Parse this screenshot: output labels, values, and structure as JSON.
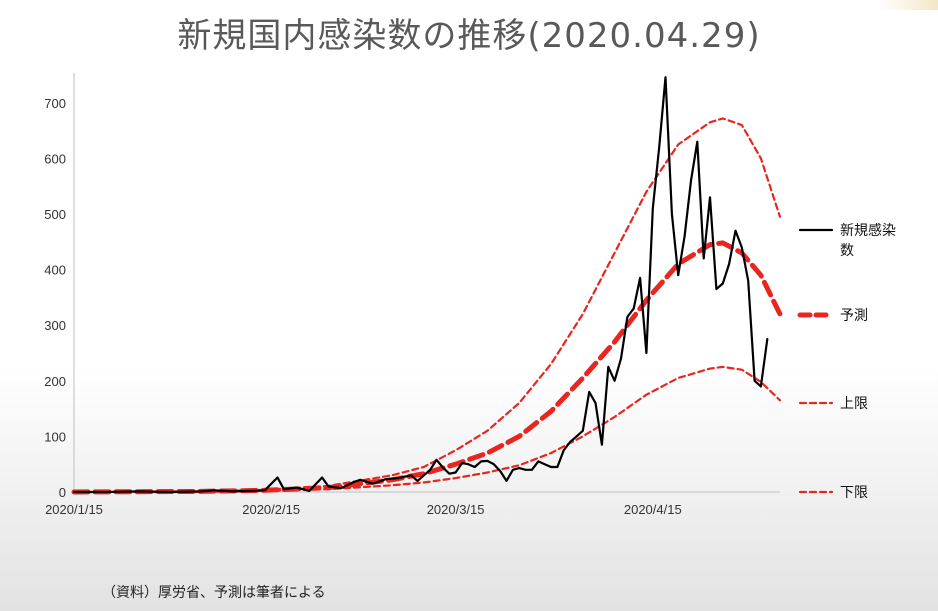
{
  "title": "新規国内感染数の推移(2020.04.29)",
  "source_note": "（資料）厚労省、予測は筆者による",
  "colors": {
    "actual": "#000000",
    "forecast": "#e8261f",
    "bounds": "#e8261f",
    "title": "#595959"
  },
  "chart_data": {
    "type": "line",
    "title": "新規国内感染数の推移(2020.04.29)",
    "x_start": "2020-01-15",
    "x_end": "2020-04-29",
    "xticks": [
      {
        "day": 0,
        "label": "2020/1/15"
      },
      {
        "day": 31,
        "label": "2020/2/15"
      },
      {
        "day": 60,
        "label": "2020/3/15"
      },
      {
        "day": 91,
        "label": "2020/4/15"
      }
    ],
    "ylim": [
      0,
      750
    ],
    "yticks": [
      0,
      100,
      200,
      300,
      400,
      500,
      600,
      700
    ],
    "series": [
      {
        "name": "新規感染数",
        "style": "solid",
        "values": [
          [
            0,
            0
          ],
          [
            5,
            0
          ],
          [
            10,
            1
          ],
          [
            15,
            0
          ],
          [
            20,
            1
          ],
          [
            22,
            3
          ],
          [
            25,
            1
          ],
          [
            28,
            2
          ],
          [
            30,
            3
          ],
          [
            32,
            26
          ],
          [
            33,
            5
          ],
          [
            35,
            8
          ],
          [
            37,
            2
          ],
          [
            39,
            26
          ],
          [
            40,
            10
          ],
          [
            42,
            7
          ],
          [
            44,
            18
          ],
          [
            45,
            22
          ],
          [
            47,
            15
          ],
          [
            49,
            23
          ],
          [
            51,
            25
          ],
          [
            53,
            30
          ],
          [
            54,
            20
          ],
          [
            56,
            40
          ],
          [
            57,
            58
          ],
          [
            58,
            44
          ],
          [
            59,
            33
          ],
          [
            60,
            35
          ],
          [
            61,
            52
          ],
          [
            62,
            50
          ],
          [
            63,
            45
          ],
          [
            64,
            55
          ],
          [
            65,
            56
          ],
          [
            66,
            50
          ],
          [
            67,
            38
          ],
          [
            68,
            20
          ],
          [
            69,
            40
          ],
          [
            70,
            43
          ],
          [
            71,
            40
          ],
          [
            72,
            40
          ],
          [
            73,
            55
          ],
          [
            74,
            50
          ],
          [
            75,
            45
          ],
          [
            76,
            45
          ],
          [
            77,
            75
          ],
          [
            78,
            90
          ],
          [
            79,
            100
          ],
          [
            80,
            110
          ],
          [
            81,
            180
          ],
          [
            82,
            160
          ],
          [
            83,
            85
          ],
          [
            84,
            225
          ],
          [
            85,
            200
          ],
          [
            86,
            240
          ],
          [
            87,
            315
          ],
          [
            88,
            330
          ],
          [
            89,
            385
          ],
          [
            90,
            250
          ],
          [
            91,
            510
          ],
          [
            92,
            620
          ],
          [
            93,
            746
          ],
          [
            94,
            500
          ],
          [
            95,
            390
          ],
          [
            96,
            460
          ],
          [
            97,
            560
          ],
          [
            98,
            630
          ],
          [
            99,
            420
          ],
          [
            100,
            530
          ],
          [
            101,
            365
          ],
          [
            102,
            375
          ],
          [
            103,
            410
          ],
          [
            104,
            470
          ],
          [
            105,
            440
          ],
          [
            106,
            380
          ],
          [
            107,
            200
          ],
          [
            108,
            190
          ],
          [
            109,
            275
          ]
        ]
      },
      {
        "name": "予測",
        "style": "bold-dash",
        "values": [
          [
            0,
            0
          ],
          [
            20,
            1
          ],
          [
            30,
            3
          ],
          [
            40,
            8
          ],
          [
            50,
            22
          ],
          [
            55,
            33
          ],
          [
            60,
            50
          ],
          [
            65,
            70
          ],
          [
            70,
            100
          ],
          [
            75,
            145
          ],
          [
            80,
            205
          ],
          [
            85,
            270
          ],
          [
            90,
            345
          ],
          [
            95,
            410
          ],
          [
            100,
            445
          ],
          [
            102,
            448
          ],
          [
            105,
            430
          ],
          [
            108,
            390
          ],
          [
            111,
            320
          ]
        ]
      },
      {
        "name": "上限",
        "style": "dash",
        "values": [
          [
            0,
            0
          ],
          [
            20,
            1
          ],
          [
            30,
            4
          ],
          [
            40,
            11
          ],
          [
            50,
            30
          ],
          [
            55,
            45
          ],
          [
            60,
            75
          ],
          [
            65,
            110
          ],
          [
            70,
            160
          ],
          [
            75,
            230
          ],
          [
            80,
            320
          ],
          [
            85,
            430
          ],
          [
            90,
            540
          ],
          [
            95,
            625
          ],
          [
            100,
            665
          ],
          [
            102,
            672
          ],
          [
            105,
            660
          ],
          [
            108,
            600
          ],
          [
            111,
            495
          ]
        ]
      },
      {
        "name": "下限",
        "style": "dash",
        "values": [
          [
            0,
            0
          ],
          [
            20,
            0
          ],
          [
            30,
            2
          ],
          [
            40,
            5
          ],
          [
            50,
            12
          ],
          [
            55,
            17
          ],
          [
            60,
            25
          ],
          [
            65,
            35
          ],
          [
            70,
            48
          ],
          [
            75,
            70
          ],
          [
            80,
            100
          ],
          [
            85,
            135
          ],
          [
            90,
            175
          ],
          [
            95,
            205
          ],
          [
            100,
            222
          ],
          [
            102,
            225
          ],
          [
            105,
            220
          ],
          [
            108,
            198
          ],
          [
            111,
            165
          ]
        ]
      }
    ],
    "legend": [
      "新規感染数",
      "予測",
      "上限",
      "下限"
    ],
    "legend_position": "right"
  }
}
